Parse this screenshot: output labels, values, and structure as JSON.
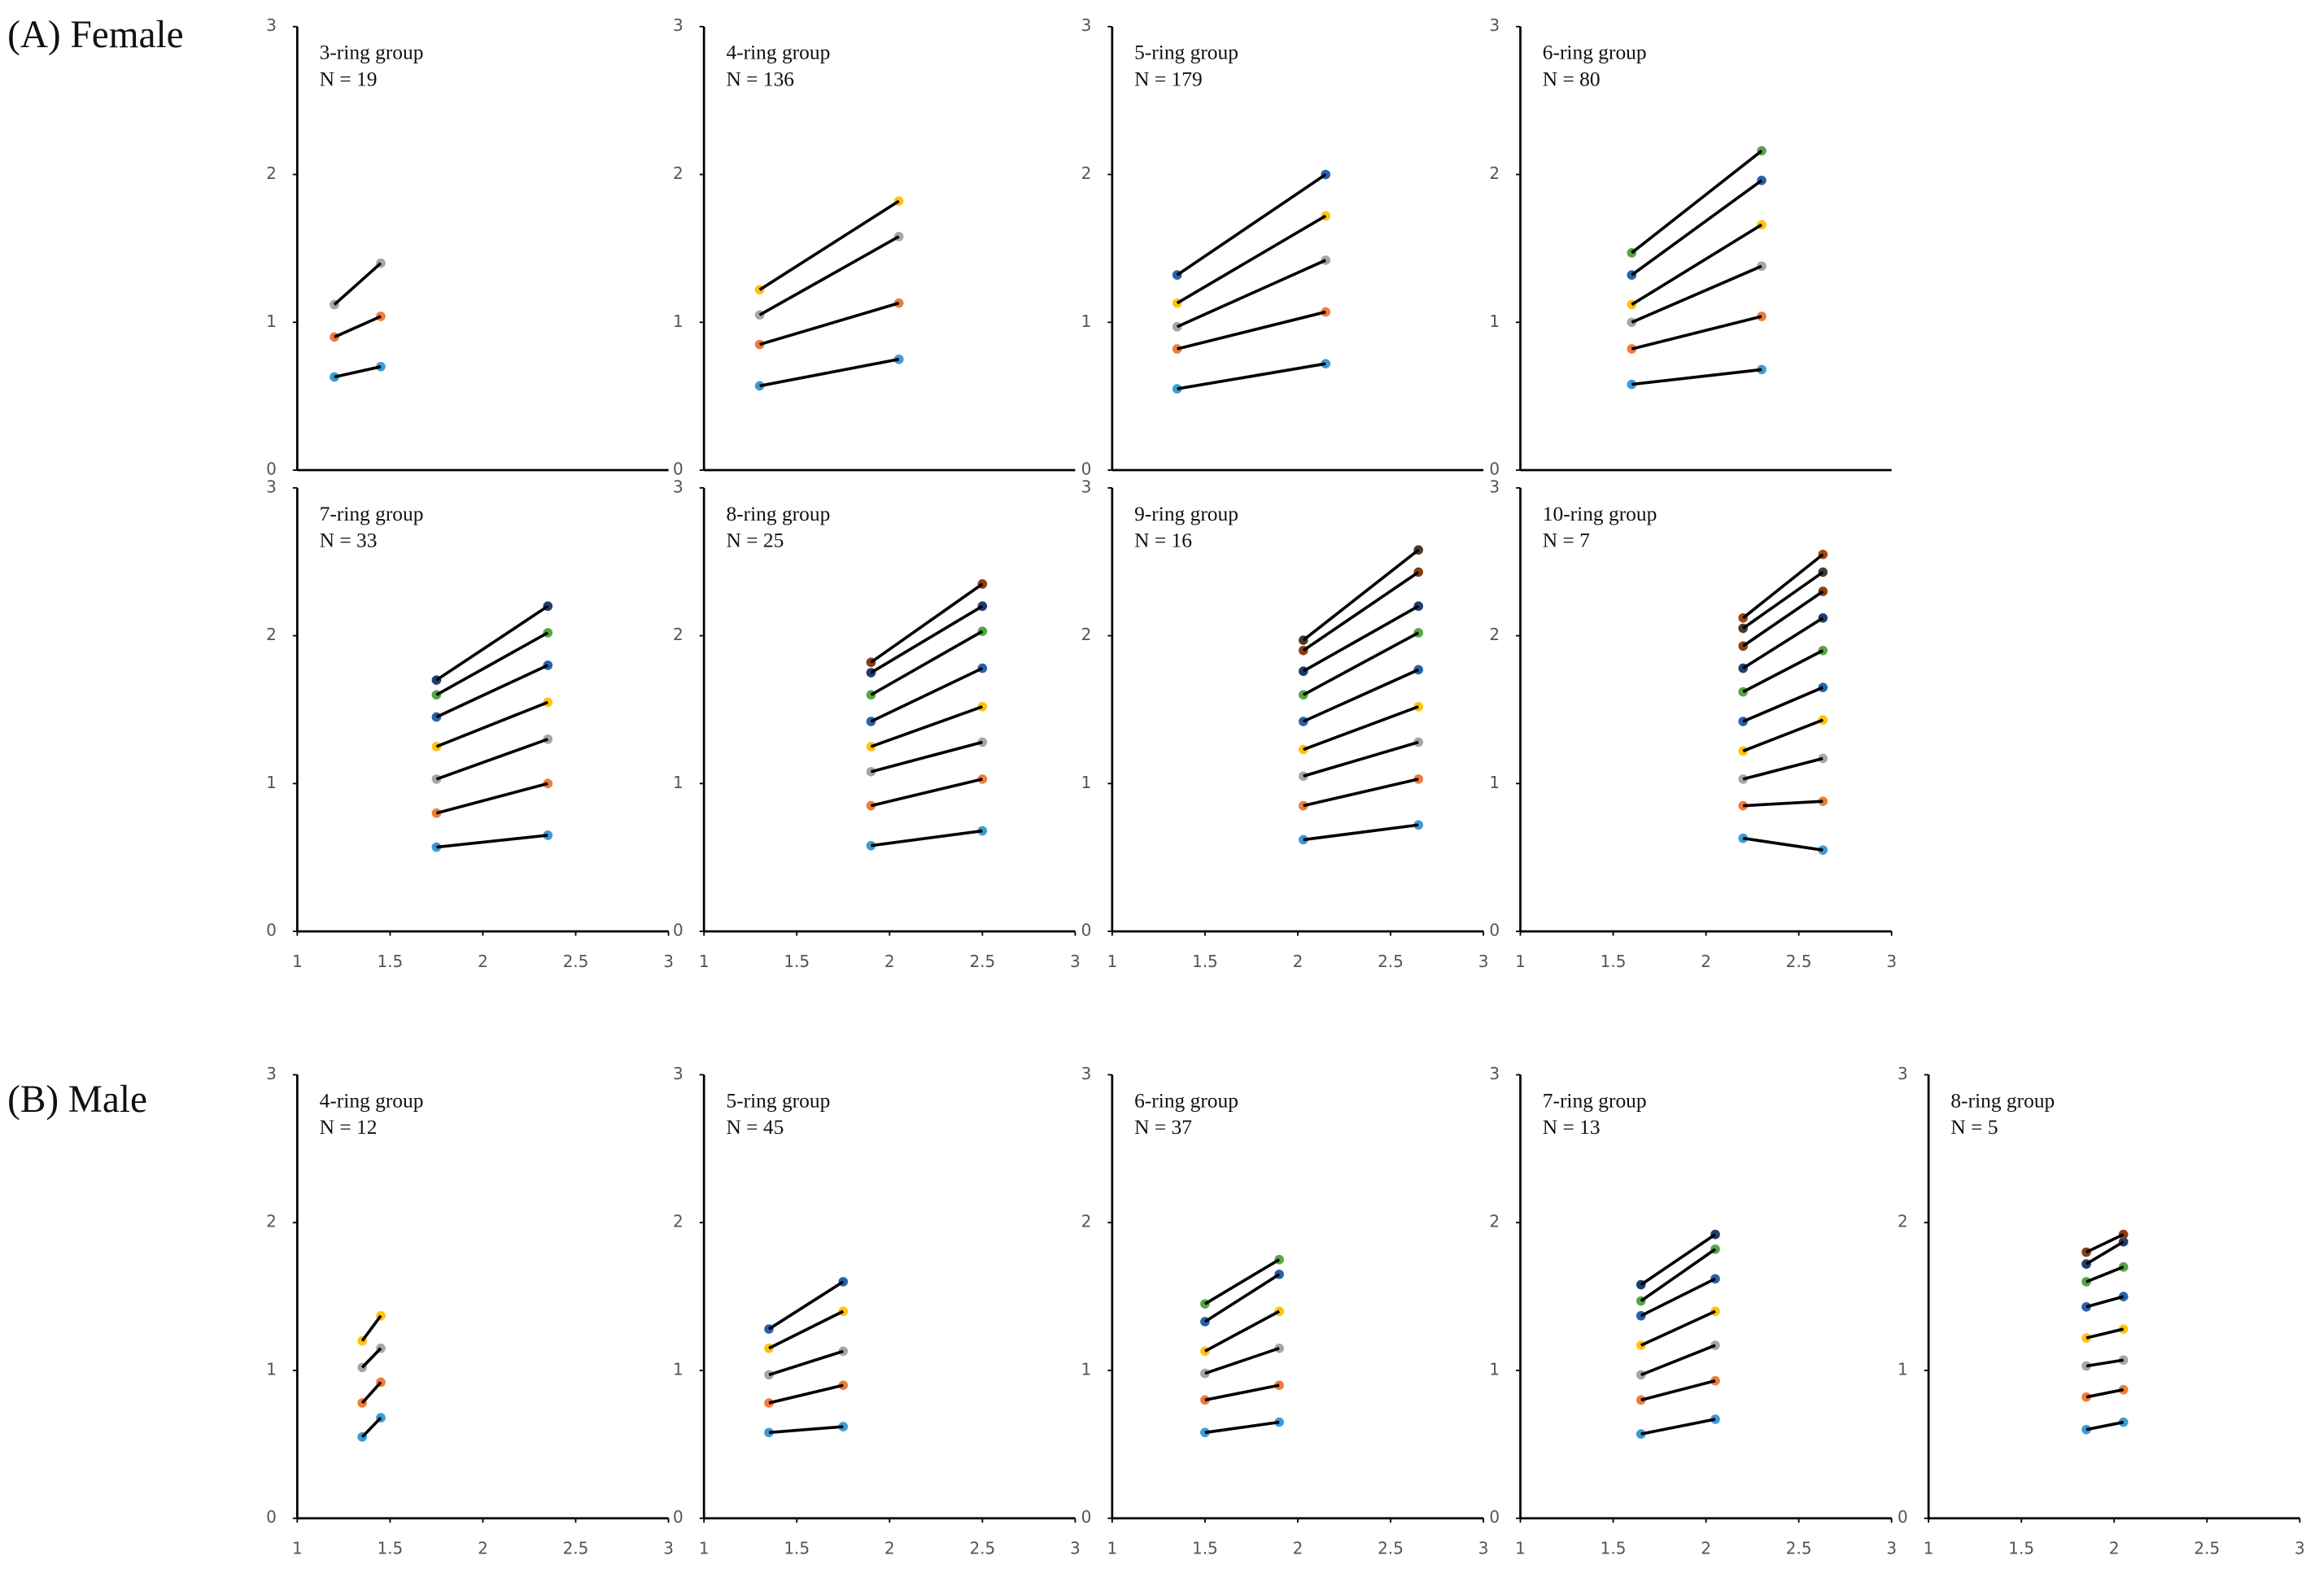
{
  "sections": [
    {
      "label": "(A) Female"
    },
    {
      "label": "(B) Male"
    }
  ],
  "chart_data": [
    {
      "type": "line",
      "title": "3-ring group",
      "subtitle": "N = 19",
      "xlim": [
        1,
        3
      ],
      "ylim": [
        0,
        3
      ],
      "yticks": [
        0,
        1,
        2,
        3
      ],
      "series": [
        {
          "color": "#3d9bd6",
          "x": [
            1.2,
            1.45
          ],
          "values": [
            0.63,
            0.7
          ]
        },
        {
          "color": "#f07c3a",
          "x": [
            1.2,
            1.45
          ],
          "values": [
            0.9,
            1.04
          ]
        },
        {
          "color": "#a6a6a6",
          "x": [
            1.2,
            1.45
          ],
          "values": [
            1.12,
            1.4
          ]
        }
      ]
    },
    {
      "type": "line",
      "title": "4-ring group",
      "subtitle": "N = 136",
      "xlim": [
        1,
        3
      ],
      "ylim": [
        0,
        3
      ],
      "yticks": [
        0,
        1,
        2,
        3
      ],
      "series": [
        {
          "color": "#3d9bd6",
          "x": [
            1.3,
            2.05
          ],
          "values": [
            0.57,
            0.75
          ]
        },
        {
          "color": "#f07c3a",
          "x": [
            1.3,
            2.05
          ],
          "values": [
            0.85,
            1.13
          ]
        },
        {
          "color": "#a6a6a6",
          "x": [
            1.3,
            2.05
          ],
          "values": [
            1.05,
            1.58
          ]
        },
        {
          "color": "#ffc20e",
          "x": [
            1.3,
            2.05
          ],
          "values": [
            1.22,
            1.82
          ]
        }
      ]
    },
    {
      "type": "line",
      "title": "5-ring group",
      "subtitle": "N = 179",
      "xlim": [
        1,
        3
      ],
      "ylim": [
        0,
        3
      ],
      "yticks": [
        0,
        1,
        2,
        3
      ],
      "series": [
        {
          "color": "#3d9bd6",
          "x": [
            1.35,
            2.15
          ],
          "values": [
            0.55,
            0.72
          ]
        },
        {
          "color": "#f07c3a",
          "x": [
            1.35,
            2.15
          ],
          "values": [
            0.82,
            1.07
          ]
        },
        {
          "color": "#a6a6a6",
          "x": [
            1.35,
            2.15
          ],
          "values": [
            0.97,
            1.42
          ]
        },
        {
          "color": "#ffc20e",
          "x": [
            1.35,
            2.15
          ],
          "values": [
            1.13,
            1.72
          ]
        },
        {
          "color": "#2862a8",
          "x": [
            1.35,
            2.15
          ],
          "values": [
            1.32,
            2.0
          ]
        }
      ]
    },
    {
      "type": "line",
      "title": "6-ring group",
      "subtitle": "N = 80",
      "xlim": [
        1,
        3
      ],
      "ylim": [
        0,
        3
      ],
      "yticks": [
        0,
        1,
        2,
        3
      ],
      "series": [
        {
          "color": "#3d9bd6",
          "x": [
            1.6,
            2.3
          ],
          "values": [
            0.58,
            0.68
          ]
        },
        {
          "color": "#f07c3a",
          "x": [
            1.6,
            2.3
          ],
          "values": [
            0.82,
            1.04
          ]
        },
        {
          "color": "#a6a6a6",
          "x": [
            1.6,
            2.3
          ],
          "values": [
            1.0,
            1.38
          ]
        },
        {
          "color": "#ffc20e",
          "x": [
            1.6,
            2.3
          ],
          "values": [
            1.12,
            1.66
          ]
        },
        {
          "color": "#2862a8",
          "x": [
            1.6,
            2.3
          ],
          "values": [
            1.32,
            1.96
          ]
        },
        {
          "color": "#58a545",
          "x": [
            1.6,
            2.3
          ],
          "values": [
            1.47,
            2.16
          ]
        }
      ]
    },
    {
      "type": "line",
      "title": "7-ring group",
      "subtitle": "N = 33",
      "xlim": [
        1,
        3
      ],
      "ylim": [
        0,
        3
      ],
      "yticks": [
        0,
        1,
        2,
        3
      ],
      "xticks": [
        1,
        1.5,
        2,
        2.5,
        3
      ],
      "series": [
        {
          "color": "#3d9bd6",
          "x": [
            1.75,
            2.35
          ],
          "values": [
            0.57,
            0.65
          ]
        },
        {
          "color": "#f07c3a",
          "x": [
            1.75,
            2.35
          ],
          "values": [
            0.8,
            1.0
          ]
        },
        {
          "color": "#a6a6a6",
          "x": [
            1.75,
            2.35
          ],
          "values": [
            1.03,
            1.3
          ]
        },
        {
          "color": "#ffc20e",
          "x": [
            1.75,
            2.35
          ],
          "values": [
            1.25,
            1.55
          ]
        },
        {
          "color": "#2862a8",
          "x": [
            1.75,
            2.35
          ],
          "values": [
            1.45,
            1.8
          ]
        },
        {
          "color": "#58a545",
          "x": [
            1.75,
            2.35
          ],
          "values": [
            1.6,
            2.02
          ]
        },
        {
          "color": "#1f3f6e",
          "x": [
            1.75,
            2.35
          ],
          "values": [
            1.7,
            2.2
          ]
        }
      ]
    },
    {
      "type": "line",
      "title": "8-ring group",
      "subtitle": "N = 25",
      "xlim": [
        1,
        3
      ],
      "ylim": [
        0,
        3
      ],
      "yticks": [
        0,
        1,
        2,
        3
      ],
      "xticks": [
        1,
        1.5,
        2,
        2.5,
        3
      ],
      "series": [
        {
          "color": "#3d9bd6",
          "x": [
            1.9,
            2.5
          ],
          "values": [
            0.58,
            0.68
          ]
        },
        {
          "color": "#f07c3a",
          "x": [
            1.9,
            2.5
          ],
          "values": [
            0.85,
            1.03
          ]
        },
        {
          "color": "#a6a6a6",
          "x": [
            1.9,
            2.5
          ],
          "values": [
            1.08,
            1.28
          ]
        },
        {
          "color": "#ffc20e",
          "x": [
            1.9,
            2.5
          ],
          "values": [
            1.25,
            1.52
          ]
        },
        {
          "color": "#2862a8",
          "x": [
            1.9,
            2.5
          ],
          "values": [
            1.42,
            1.78
          ]
        },
        {
          "color": "#58a545",
          "x": [
            1.9,
            2.5
          ],
          "values": [
            1.6,
            2.03
          ]
        },
        {
          "color": "#1f3f6e",
          "x": [
            1.9,
            2.5
          ],
          "values": [
            1.75,
            2.2
          ]
        },
        {
          "color": "#8b3e12",
          "x": [
            1.9,
            2.5
          ],
          "values": [
            1.82,
            2.35
          ]
        }
      ]
    },
    {
      "type": "line",
      "title": "9-ring group",
      "subtitle": "N = 16",
      "xlim": [
        1,
        3
      ],
      "ylim": [
        0,
        3
      ],
      "yticks": [
        0,
        1,
        2,
        3
      ],
      "xticks": [
        1,
        1.5,
        2,
        2.5,
        3
      ],
      "series": [
        {
          "color": "#3d9bd6",
          "x": [
            2.03,
            2.65
          ],
          "values": [
            0.62,
            0.72
          ]
        },
        {
          "color": "#f07c3a",
          "x": [
            2.03,
            2.65
          ],
          "values": [
            0.85,
            1.03
          ]
        },
        {
          "color": "#a6a6a6",
          "x": [
            2.03,
            2.65
          ],
          "values": [
            1.05,
            1.28
          ]
        },
        {
          "color": "#ffc20e",
          "x": [
            2.03,
            2.65
          ],
          "values": [
            1.23,
            1.52
          ]
        },
        {
          "color": "#2862a8",
          "x": [
            2.03,
            2.65
          ],
          "values": [
            1.42,
            1.77
          ]
        },
        {
          "color": "#58a545",
          "x": [
            2.03,
            2.65
          ],
          "values": [
            1.6,
            2.02
          ]
        },
        {
          "color": "#1f3f6e",
          "x": [
            2.03,
            2.65
          ],
          "values": [
            1.76,
            2.2
          ]
        },
        {
          "color": "#8b3e12",
          "x": [
            2.03,
            2.65
          ],
          "values": [
            1.9,
            2.43
          ]
        },
        {
          "color": "#4a3a2a",
          "x": [
            2.03,
            2.65
          ],
          "values": [
            1.97,
            2.58
          ]
        }
      ]
    },
    {
      "type": "line",
      "title": "10-ring group",
      "subtitle": "N = 7",
      "xlim": [
        1,
        3
      ],
      "ylim": [
        0,
        3
      ],
      "yticks": [
        0,
        1,
        2,
        3
      ],
      "xticks": [
        1,
        1.5,
        2,
        2.5,
        3
      ],
      "series": [
        {
          "color": "#3d9bd6",
          "x": [
            2.2,
            2.63
          ],
          "values": [
            0.63,
            0.55
          ]
        },
        {
          "color": "#f07c3a",
          "x": [
            2.2,
            2.63
          ],
          "values": [
            0.85,
            0.88
          ]
        },
        {
          "color": "#a6a6a6",
          "x": [
            2.2,
            2.63
          ],
          "values": [
            1.03,
            1.17
          ]
        },
        {
          "color": "#ffc20e",
          "x": [
            2.2,
            2.63
          ],
          "values": [
            1.22,
            1.43
          ]
        },
        {
          "color": "#2862a8",
          "x": [
            2.2,
            2.63
          ],
          "values": [
            1.42,
            1.65
          ]
        },
        {
          "color": "#58a545",
          "x": [
            2.2,
            2.63
          ],
          "values": [
            1.62,
            1.9
          ]
        },
        {
          "color": "#1f3f6e",
          "x": [
            2.2,
            2.63
          ],
          "values": [
            1.78,
            2.12
          ]
        },
        {
          "color": "#8b3e12",
          "x": [
            2.2,
            2.63
          ],
          "values": [
            1.93,
            2.3
          ]
        },
        {
          "color": "#4a3a2a",
          "x": [
            2.2,
            2.63
          ],
          "values": [
            2.05,
            2.43
          ]
        },
        {
          "color": "#9e480e",
          "x": [
            2.2,
            2.63
          ],
          "values": [
            2.12,
            2.55
          ]
        }
      ]
    },
    {
      "type": "line",
      "title": "4-ring group",
      "subtitle": "N = 12",
      "xlim": [
        1,
        3
      ],
      "ylim": [
        0,
        3
      ],
      "yticks": [
        0,
        1,
        2,
        3
      ],
      "xticks": [
        1,
        1.5,
        2,
        2.5,
        3
      ],
      "series": [
        {
          "color": "#3d9bd6",
          "x": [
            1.35,
            1.45
          ],
          "values": [
            0.55,
            0.68
          ]
        },
        {
          "color": "#f07c3a",
          "x": [
            1.35,
            1.45
          ],
          "values": [
            0.78,
            0.92
          ]
        },
        {
          "color": "#a6a6a6",
          "x": [
            1.35,
            1.45
          ],
          "values": [
            1.02,
            1.15
          ]
        },
        {
          "color": "#ffc20e",
          "x": [
            1.35,
            1.45
          ],
          "values": [
            1.2,
            1.37
          ]
        }
      ]
    },
    {
      "type": "line",
      "title": "5-ring group",
      "subtitle": "N = 45",
      "xlim": [
        1,
        3
      ],
      "ylim": [
        0,
        3
      ],
      "yticks": [
        0,
        1,
        2,
        3
      ],
      "xticks": [
        1,
        1.5,
        2,
        2.5,
        3
      ],
      "series": [
        {
          "color": "#3d9bd6",
          "x": [
            1.35,
            1.75
          ],
          "values": [
            0.58,
            0.62
          ]
        },
        {
          "color": "#f07c3a",
          "x": [
            1.35,
            1.75
          ],
          "values": [
            0.78,
            0.9
          ]
        },
        {
          "color": "#a6a6a6",
          "x": [
            1.35,
            1.75
          ],
          "values": [
            0.97,
            1.13
          ]
        },
        {
          "color": "#ffc20e",
          "x": [
            1.35,
            1.75
          ],
          "values": [
            1.15,
            1.4
          ]
        },
        {
          "color": "#2862a8",
          "x": [
            1.35,
            1.75
          ],
          "values": [
            1.28,
            1.6
          ]
        }
      ]
    },
    {
      "type": "line",
      "title": "6-ring group",
      "subtitle": "N = 37",
      "xlim": [
        1,
        3
      ],
      "ylim": [
        0,
        3
      ],
      "yticks": [
        0,
        1,
        2,
        3
      ],
      "xticks": [
        1,
        1.5,
        2,
        2.5,
        3
      ],
      "series": [
        {
          "color": "#3d9bd6",
          "x": [
            1.5,
            1.9
          ],
          "values": [
            0.58,
            0.65
          ]
        },
        {
          "color": "#f07c3a",
          "x": [
            1.5,
            1.9
          ],
          "values": [
            0.8,
            0.9
          ]
        },
        {
          "color": "#a6a6a6",
          "x": [
            1.5,
            1.9
          ],
          "values": [
            0.98,
            1.15
          ]
        },
        {
          "color": "#ffc20e",
          "x": [
            1.5,
            1.9
          ],
          "values": [
            1.13,
            1.4
          ]
        },
        {
          "color": "#2862a8",
          "x": [
            1.5,
            1.9
          ],
          "values": [
            1.33,
            1.65
          ]
        },
        {
          "color": "#58a545",
          "x": [
            1.5,
            1.9
          ],
          "values": [
            1.45,
            1.75
          ]
        }
      ]
    },
    {
      "type": "line",
      "title": "7-ring group",
      "subtitle": "N = 13",
      "xlim": [
        1,
        3
      ],
      "ylim": [
        0,
        3
      ],
      "yticks": [
        0,
        1,
        2,
        3
      ],
      "xticks": [
        1,
        1.5,
        2,
        2.5,
        3
      ],
      "series": [
        {
          "color": "#3d9bd6",
          "x": [
            1.65,
            2.05
          ],
          "values": [
            0.57,
            0.67
          ]
        },
        {
          "color": "#f07c3a",
          "x": [
            1.65,
            2.05
          ],
          "values": [
            0.8,
            0.93
          ]
        },
        {
          "color": "#a6a6a6",
          "x": [
            1.65,
            2.05
          ],
          "values": [
            0.97,
            1.17
          ]
        },
        {
          "color": "#ffc20e",
          "x": [
            1.65,
            2.05
          ],
          "values": [
            1.17,
            1.4
          ]
        },
        {
          "color": "#2862a8",
          "x": [
            1.65,
            2.05
          ],
          "values": [
            1.37,
            1.62
          ]
        },
        {
          "color": "#58a545",
          "x": [
            1.65,
            2.05
          ],
          "values": [
            1.47,
            1.82
          ]
        },
        {
          "color": "#1f3f6e",
          "x": [
            1.65,
            2.05
          ],
          "values": [
            1.58,
            1.92
          ]
        }
      ]
    },
    {
      "type": "line",
      "title": "8-ring group",
      "subtitle": "N = 5",
      "xlim": [
        1,
        3
      ],
      "ylim": [
        0,
        3
      ],
      "yticks": [
        0,
        1,
        2,
        3
      ],
      "xticks": [
        1,
        1.5,
        2,
        2.5,
        3
      ],
      "series": [
        {
          "color": "#3d9bd6",
          "x": [
            1.85,
            2.05
          ],
          "values": [
            0.6,
            0.65
          ]
        },
        {
          "color": "#f07c3a",
          "x": [
            1.85,
            2.05
          ],
          "values": [
            0.82,
            0.87
          ]
        },
        {
          "color": "#a6a6a6",
          "x": [
            1.85,
            2.05
          ],
          "values": [
            1.03,
            1.07
          ]
        },
        {
          "color": "#ffc20e",
          "x": [
            1.85,
            2.05
          ],
          "values": [
            1.22,
            1.28
          ]
        },
        {
          "color": "#2862a8",
          "x": [
            1.85,
            2.05
          ],
          "values": [
            1.43,
            1.5
          ]
        },
        {
          "color": "#58a545",
          "x": [
            1.85,
            2.05
          ],
          "values": [
            1.6,
            1.7
          ]
        },
        {
          "color": "#1f3f6e",
          "x": [
            1.85,
            2.05
          ],
          "values": [
            1.72,
            1.87
          ]
        },
        {
          "color": "#8b3e12",
          "x": [
            1.85,
            2.05
          ],
          "values": [
            1.8,
            1.92
          ]
        }
      ]
    }
  ]
}
